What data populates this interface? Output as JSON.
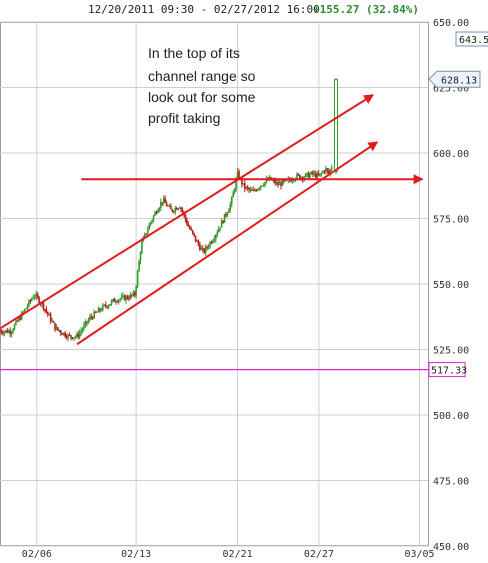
{
  "header": {
    "range_text": "12/20/2011 09:30 - 02/27/2012 16:00",
    "change_text": "+155.27 (32.84%)"
  },
  "annotation": {
    "lines": [
      "In the top of its",
      "channel range so",
      "look out for some",
      "profit taking"
    ]
  },
  "colors": {
    "up": "#2e9e2e",
    "down": "#c0151b",
    "trendline": "#e31b1b",
    "pink_level": "#d12ad1",
    "grid": "#cfcfcf",
    "header_green": "#2e8b2e"
  },
  "chart_data": {
    "type": "candlestick",
    "ylim": [
      450,
      650
    ],
    "yticks": [
      "650.00",
      "625.00",
      "600.00",
      "575.00",
      "550.00",
      "525.00",
      "500.00",
      "475.00",
      "450.00"
    ],
    "ytick_values": [
      650,
      625,
      600,
      575,
      550,
      525,
      500,
      475,
      450
    ],
    "xticks": [
      "02/06",
      "02/13",
      "02/21",
      "02/27",
      "03/05"
    ],
    "last_price_label": "628.13",
    "last_price": 628.13,
    "top_partial_label": "643.5",
    "top_partial_value": 643.5,
    "pink_level_label": "517.33",
    "pink_level": 517.33,
    "horizontal_level": 590,
    "channel_upper": [
      [
        0.0,
        533
      ],
      [
        0.87,
        622
      ]
    ],
    "channel_lower": [
      [
        0.18,
        527
      ],
      [
        0.88,
        604
      ]
    ],
    "trend_path": [
      [
        0.0,
        532
      ],
      [
        0.025,
        532
      ],
      [
        0.05,
        538
      ],
      [
        0.08,
        546
      ],
      [
        0.1,
        542
      ],
      [
        0.13,
        533
      ],
      [
        0.16,
        530
      ],
      [
        0.18,
        530
      ],
      [
        0.21,
        537
      ],
      [
        0.24,
        541
      ],
      [
        0.27,
        544
      ],
      [
        0.3,
        545
      ],
      [
        0.315,
        546
      ],
      [
        0.33,
        565
      ],
      [
        0.35,
        573
      ],
      [
        0.365,
        578
      ],
      [
        0.38,
        582
      ],
      [
        0.4,
        578
      ],
      [
        0.42,
        580
      ],
      [
        0.44,
        572
      ],
      [
        0.46,
        566
      ],
      [
        0.475,
        562
      ],
      [
        0.5,
        568
      ],
      [
        0.52,
        574
      ],
      [
        0.54,
        581
      ],
      [
        0.555,
        592
      ],
      [
        0.57,
        587
      ],
      [
        0.59,
        585
      ],
      [
        0.61,
        588
      ],
      [
        0.63,
        590
      ],
      [
        0.65,
        588
      ],
      [
        0.67,
        589
      ],
      [
        0.69,
        591
      ],
      [
        0.71,
        591
      ],
      [
        0.73,
        592
      ],
      [
        0.745,
        591
      ],
      [
        0.76,
        594
      ],
      [
        0.768,
        592
      ],
      [
        0.775,
        595
      ]
    ],
    "spike_candle": {
      "open": 593,
      "high": 628.5,
      "low": 592,
      "close": 628
    }
  }
}
